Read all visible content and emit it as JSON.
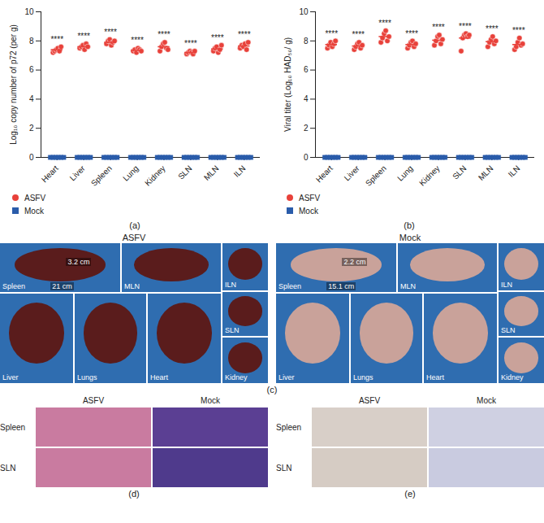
{
  "chart_data": [
    {
      "type": "scatter",
      "panel_label": "(a)",
      "y_label": "Log₁₀ copy number of p72 (per g)",
      "categories": [
        "Heart",
        "Liver",
        "Spleen",
        "Lung",
        "Kidney",
        "SLN",
        "MLN",
        "ILN"
      ],
      "series": [
        {
          "name": "ASFV",
          "color": "#e8413a",
          "marker": "circle",
          "values": [
            [
              7.2,
              7.3,
              7.4,
              7.5,
              7.3,
              7.6
            ],
            [
              7.5,
              7.6,
              7.7,
              7.4,
              7.8,
              7.6
            ],
            [
              7.8,
              8.0,
              8.1,
              7.7,
              7.9,
              8.0
            ],
            [
              7.3,
              7.4,
              7.2,
              7.5,
              7.4,
              7.3
            ],
            [
              7.3,
              7.6,
              7.8,
              7.9,
              7.5,
              7.4
            ],
            [
              7.1,
              7.2,
              7.3,
              7.2,
              7.1,
              7.3
            ],
            [
              7.3,
              7.5,
              7.6,
              7.2,
              7.4,
              7.7
            ],
            [
              7.5,
              7.7,
              7.6,
              7.8,
              7.4,
              7.9
            ]
          ],
          "means": [
            7.4,
            7.6,
            7.9,
            7.35,
            7.6,
            7.2,
            7.45,
            7.65
          ]
        },
        {
          "name": "Mock",
          "color": "#2a5caa",
          "marker": "square",
          "values": [
            [
              0,
              0,
              0,
              0,
              0,
              0
            ],
            [
              0,
              0,
              0,
              0,
              0,
              0
            ],
            [
              0,
              0,
              0,
              0,
              0,
              0
            ],
            [
              0,
              0,
              0,
              0,
              0,
              0
            ],
            [
              0,
              0,
              0,
              0,
              0,
              0
            ],
            [
              0,
              0,
              0,
              0,
              0,
              0
            ],
            [
              0,
              0,
              0,
              0,
              0,
              0
            ],
            [
              0,
              0,
              0,
              0,
              0,
              0
            ]
          ]
        }
      ],
      "annotations": [
        "****",
        "****",
        "****",
        "****",
        "****",
        "****",
        "****",
        "****"
      ],
      "ylim": [
        0,
        10
      ],
      "yticks": [
        0,
        2,
        4,
        6,
        8,
        10
      ],
      "grid": false,
      "legend": "bottom left"
    },
    {
      "type": "scatter",
      "panel_label": "(b)",
      "y_label": "Viral titer (Log₁₀ HAD₅₀/ g)",
      "categories": [
        "Heart",
        "Liver",
        "Spleen",
        "Lung",
        "Kidney",
        "SLN",
        "MLN",
        "ILN"
      ],
      "series": [
        {
          "name": "ASFV",
          "color": "#e8413a",
          "marker": "circle",
          "values": [
            [
              7.5,
              7.7,
              7.9,
              7.6,
              7.8,
              8.0
            ],
            [
              7.4,
              7.6,
              7.8,
              7.9,
              7.5,
              7.7
            ],
            [
              7.9,
              8.2,
              8.5,
              8.7,
              8.0,
              8.3
            ],
            [
              7.5,
              7.7,
              7.9,
              8.0,
              7.6,
              7.8
            ],
            [
              7.7,
              8.0,
              8.3,
              8.4,
              7.8,
              8.1
            ],
            [
              7.3,
              8.2,
              8.4,
              8.5,
              8.3,
              8.4
            ],
            [
              7.6,
              7.9,
              8.1,
              8.3,
              7.8,
              8.0
            ],
            [
              7.4,
              7.6,
              7.9,
              8.2,
              7.7,
              7.8
            ]
          ],
          "means": [
            7.75,
            7.65,
            8.3,
            7.75,
            8.05,
            8.2,
            7.95,
            7.75
          ]
        },
        {
          "name": "Mock",
          "color": "#2a5caa",
          "marker": "square",
          "values": [
            [
              0,
              0,
              0,
              0,
              0,
              0
            ],
            [
              0,
              0,
              0,
              0,
              0,
              0
            ],
            [
              0,
              0,
              0,
              0,
              0,
              0
            ],
            [
              0,
              0,
              0,
              0,
              0,
              0
            ],
            [
              0,
              0,
              0,
              0,
              0,
              0
            ],
            [
              0,
              0,
              0,
              0,
              0,
              0
            ],
            [
              0,
              0,
              0,
              0,
              0,
              0
            ],
            [
              0,
              0,
              0,
              0,
              0,
              0
            ]
          ]
        }
      ],
      "annotations": [
        "****",
        "****",
        "****",
        "****",
        "****",
        "****",
        "****",
        "****"
      ],
      "ylim": [
        0,
        10
      ],
      "yticks": [
        0,
        2,
        4,
        6,
        8,
        10
      ],
      "grid": false,
      "legend": "bottom left"
    }
  ],
  "photos": {
    "panel_label": "(c)",
    "groups": [
      {
        "title": "ASFV",
        "tiles": [
          {
            "label": "Spleen",
            "measures": [
              "3.2 cm",
              "21 cm"
            ]
          },
          {
            "label": "MLN"
          },
          {
            "label": "ILN"
          },
          {
            "label": "SLN"
          },
          {
            "label": "Kidney"
          },
          {
            "label": "Liver"
          },
          {
            "label": "Lungs"
          },
          {
            "label": "Heart"
          }
        ]
      },
      {
        "title": "Mock",
        "tiles": [
          {
            "label": "Spleen",
            "measures": [
              "2.2 cm",
              "15.1 cm"
            ]
          },
          {
            "label": "MLN"
          },
          {
            "label": "ILN"
          },
          {
            "label": "SLN"
          },
          {
            "label": "Kidney"
          },
          {
            "label": "Liver"
          },
          {
            "label": "Lungs"
          },
          {
            "label": "Heart"
          }
        ]
      }
    ]
  },
  "histology": [
    {
      "panel_label": "(d)",
      "columns": [
        "ASFV",
        "Mock"
      ],
      "rows": [
        "Spleen",
        "SLN"
      ]
    },
    {
      "panel_label": "(e)",
      "columns": [
        "ASFV",
        "Mock"
      ],
      "rows": [
        "Spleen",
        "SLN"
      ]
    }
  ]
}
